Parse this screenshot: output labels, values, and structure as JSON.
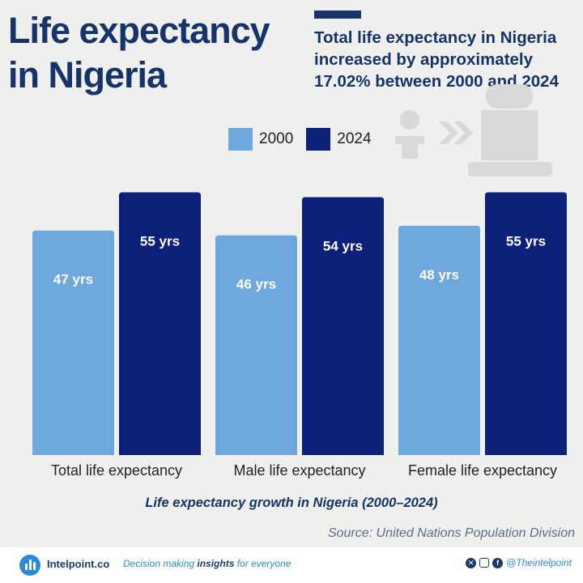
{
  "header": {
    "title": "Life expectancy in Nigeria",
    "subtitle": "Total life expectancy in Nigeria increased by approximately 17.02% between 2000 and 2024"
  },
  "chart_data": {
    "type": "bar",
    "categories": [
      "Total life expectancy",
      "Male life expectancy",
      "Female life expectancy"
    ],
    "series": [
      {
        "name": "2000",
        "values": [
          47,
          46,
          48
        ],
        "color": "#6fa8dc",
        "labels": [
          "47 yrs",
          "46 yrs",
          "48 yrs"
        ]
      },
      {
        "name": "2024",
        "values": [
          55,
          54,
          55
        ],
        "color": "#0d2079",
        "labels": [
          "55 yrs",
          "54 yrs",
          "55 yrs"
        ]
      }
    ],
    "ylim": [
      0,
      60
    ],
    "grid": false,
    "legend_position": "top"
  },
  "footnote": "Life expectancy growth in Nigeria (2000–2024)",
  "source": "Source: United Nations Population Division",
  "footer": {
    "brand": "Intelpoint.co",
    "tagline_pre": "Decision making ",
    "tagline_bold": "insights",
    "tagline_post": " for everyone",
    "handle": "@Theintelpoint",
    "social_icons": [
      "x-icon",
      "instagram-icon",
      "facebook-icon"
    ]
  }
}
